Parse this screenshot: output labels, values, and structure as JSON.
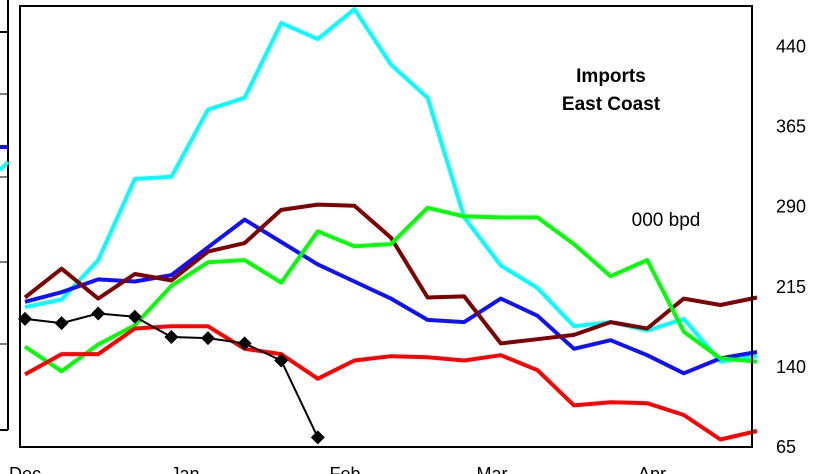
{
  "chart_data": {
    "type": "line",
    "title": "Imports\nEast Coast",
    "title_lines": [
      "Imports",
      "East Coast"
    ],
    "unit_label": "000 bpd",
    "x_tick_labels": [
      "Dec",
      "Jan",
      "Feb",
      "Mar",
      "Apr"
    ],
    "y_axis_side": "right",
    "ylim": [
      65,
      478
    ],
    "y_ticks": [
      65,
      140,
      215,
      290,
      365,
      440
    ],
    "grid": false,
    "series": [
      {
        "color": "#00ffff",
        "values": [
          196,
          203,
          240,
          316,
          318,
          381,
          392,
          462,
          447,
          475,
          423,
          392,
          280,
          235,
          214,
          178,
          182,
          174,
          185,
          145,
          150
        ]
      },
      {
        "color": "#1010ff",
        "values": [
          201,
          210,
          222,
          220,
          226,
          252,
          278,
          257,
          236,
          220,
          204,
          184,
          182,
          204,
          188,
          157,
          165,
          151,
          134,
          148,
          154
        ]
      },
      {
        "color": "#7f0000",
        "values": [
          205,
          232,
          204,
          227,
          221,
          248,
          256,
          287,
          292,
          291,
          261,
          205,
          206,
          162,
          166,
          170,
          182,
          176,
          204,
          198,
          205
        ]
      },
      {
        "color": "#00ff00",
        "values": [
          159,
          136,
          161,
          179,
          216,
          238,
          240,
          219,
          267,
          253,
          255,
          289,
          281,
          280,
          280,
          255,
          225,
          240,
          173,
          148,
          145
        ]
      },
      {
        "color": "#ff0000",
        "values": [
          133,
          152,
          152,
          176,
          178,
          178,
          157,
          152,
          129,
          146,
          150,
          149,
          146,
          151,
          137,
          104,
          107,
          106,
          95,
          72,
          80
        ]
      },
      {
        "color": "#000000",
        "marker": "diamond",
        "values": [
          185,
          181,
          190,
          187,
          168,
          167,
          162,
          146,
          74
        ]
      }
    ]
  }
}
